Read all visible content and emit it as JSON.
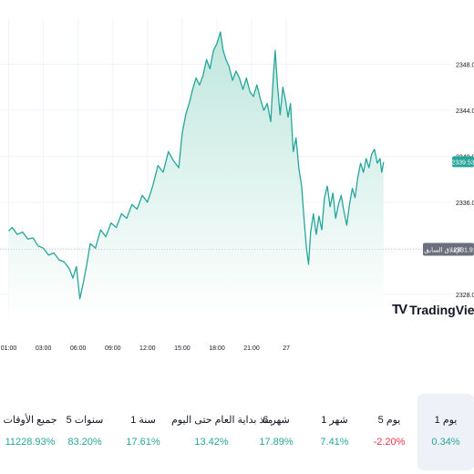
{
  "chart_data": {
    "type": "area",
    "x_ticks": [
      "01:00",
      "03:00",
      "06:00",
      "09:00",
      "12:00",
      "15:00",
      "18:00",
      "21:00",
      "27"
    ],
    "y_ticks": [
      2328.0,
      2332.0,
      2336.0,
      2340.0,
      2344.0,
      2348.0
    ],
    "ylim": [
      2326.0,
      2352.0
    ],
    "last_price": "2339.53",
    "prev_close": {
      "label": "الإغلاق السابق",
      "value": "2331.91",
      "numeric": 2331.91
    },
    "series": [
      {
        "x": 0.0,
        "y": 2333.5
      },
      {
        "x": 0.1,
        "y": 2333.8
      },
      {
        "x": 0.25,
        "y": 2333.2
      },
      {
        "x": 0.4,
        "y": 2333.4
      },
      {
        "x": 0.55,
        "y": 2332.8
      },
      {
        "x": 0.7,
        "y": 2332.9
      },
      {
        "x": 0.85,
        "y": 2332.2
      },
      {
        "x": 1.0,
        "y": 2332.0
      },
      {
        "x": 1.15,
        "y": 2331.4
      },
      {
        "x": 1.3,
        "y": 2331.6
      },
      {
        "x": 1.45,
        "y": 2331.0
      },
      {
        "x": 1.6,
        "y": 2330.8
      },
      {
        "x": 1.75,
        "y": 2330.2
      },
      {
        "x": 1.85,
        "y": 2329.4
      },
      {
        "x": 1.95,
        "y": 2330.4
      },
      {
        "x": 2.05,
        "y": 2327.6
      },
      {
        "x": 2.15,
        "y": 2329.0
      },
      {
        "x": 2.25,
        "y": 2330.6
      },
      {
        "x": 2.35,
        "y": 2332.4
      },
      {
        "x": 2.5,
        "y": 2332.0
      },
      {
        "x": 2.65,
        "y": 2333.6
      },
      {
        "x": 2.8,
        "y": 2333.0
      },
      {
        "x": 2.95,
        "y": 2334.2
      },
      {
        "x": 3.1,
        "y": 2333.8
      },
      {
        "x": 3.25,
        "y": 2335.0
      },
      {
        "x": 3.4,
        "y": 2334.6
      },
      {
        "x": 3.55,
        "y": 2335.8
      },
      {
        "x": 3.7,
        "y": 2335.4
      },
      {
        "x": 3.85,
        "y": 2336.6
      },
      {
        "x": 4.0,
        "y": 2336.0
      },
      {
        "x": 4.15,
        "y": 2337.4
      },
      {
        "x": 4.3,
        "y": 2339.2
      },
      {
        "x": 4.45,
        "y": 2338.6
      },
      {
        "x": 4.6,
        "y": 2340.4
      },
      {
        "x": 4.75,
        "y": 2339.6
      },
      {
        "x": 4.9,
        "y": 2339.0
      },
      {
        "x": 5.0,
        "y": 2342.0
      },
      {
        "x": 5.1,
        "y": 2343.6
      },
      {
        "x": 5.2,
        "y": 2344.6
      },
      {
        "x": 5.3,
        "y": 2345.8
      },
      {
        "x": 5.4,
        "y": 2346.8
      },
      {
        "x": 5.5,
        "y": 2346.2
      },
      {
        "x": 5.6,
        "y": 2347.0
      },
      {
        "x": 5.7,
        "y": 2348.4
      },
      {
        "x": 5.8,
        "y": 2347.6
      },
      {
        "x": 5.9,
        "y": 2349.2
      },
      {
        "x": 6.0,
        "y": 2349.8
      },
      {
        "x": 6.1,
        "y": 2350.8
      },
      {
        "x": 6.18,
        "y": 2349.2
      },
      {
        "x": 6.26,
        "y": 2348.4
      },
      {
        "x": 6.35,
        "y": 2347.8
      },
      {
        "x": 6.45,
        "y": 2346.6
      },
      {
        "x": 6.55,
        "y": 2347.4
      },
      {
        "x": 6.65,
        "y": 2346.8
      },
      {
        "x": 6.75,
        "y": 2345.8
      },
      {
        "x": 6.85,
        "y": 2346.8
      },
      {
        "x": 6.95,
        "y": 2345.6
      },
      {
        "x": 7.05,
        "y": 2345.2
      },
      {
        "x": 7.15,
        "y": 2346.2
      },
      {
        "x": 7.25,
        "y": 2345.0
      },
      {
        "x": 7.35,
        "y": 2344.0
      },
      {
        "x": 7.45,
        "y": 2344.6
      },
      {
        "x": 7.55,
        "y": 2343.0
      },
      {
        "x": 7.62,
        "y": 2346.8
      },
      {
        "x": 7.68,
        "y": 2349.2
      },
      {
        "x": 7.75,
        "y": 2346.0
      },
      {
        "x": 7.82,
        "y": 2343.6
      },
      {
        "x": 7.9,
        "y": 2346.0
      },
      {
        "x": 7.98,
        "y": 2344.8
      },
      {
        "x": 8.05,
        "y": 2343.4
      },
      {
        "x": 8.12,
        "y": 2344.6
      },
      {
        "x": 8.2,
        "y": 2340.4
      },
      {
        "x": 8.28,
        "y": 2341.6
      },
      {
        "x": 8.36,
        "y": 2339.0
      },
      {
        "x": 8.44,
        "y": 2337.4
      },
      {
        "x": 8.52,
        "y": 2334.2
      },
      {
        "x": 8.58,
        "y": 2332.0
      },
      {
        "x": 8.64,
        "y": 2330.6
      },
      {
        "x": 8.7,
        "y": 2333.4
      },
      {
        "x": 8.78,
        "y": 2335.0
      },
      {
        "x": 8.86,
        "y": 2333.2
      },
      {
        "x": 8.94,
        "y": 2334.8
      },
      {
        "x": 9.02,
        "y": 2333.6
      },
      {
        "x": 9.1,
        "y": 2336.4
      },
      {
        "x": 9.18,
        "y": 2337.4
      },
      {
        "x": 9.26,
        "y": 2335.6
      },
      {
        "x": 9.34,
        "y": 2336.8
      },
      {
        "x": 9.42,
        "y": 2334.6
      },
      {
        "x": 9.5,
        "y": 2335.8
      },
      {
        "x": 9.58,
        "y": 2336.6
      },
      {
        "x": 9.66,
        "y": 2335.2
      },
      {
        "x": 9.74,
        "y": 2334.0
      },
      {
        "x": 9.82,
        "y": 2335.8
      },
      {
        "x": 9.9,
        "y": 2337.2
      },
      {
        "x": 9.98,
        "y": 2336.4
      },
      {
        "x": 10.06,
        "y": 2338.2
      },
      {
        "x": 10.14,
        "y": 2339.4
      },
      {
        "x": 10.22,
        "y": 2338.6
      },
      {
        "x": 10.3,
        "y": 2339.8
      },
      {
        "x": 10.38,
        "y": 2339.0
      },
      {
        "x": 10.46,
        "y": 2340.2
      },
      {
        "x": 10.54,
        "y": 2340.6
      },
      {
        "x": 10.62,
        "y": 2339.4
      },
      {
        "x": 10.7,
        "y": 2339.8
      },
      {
        "x": 10.75,
        "y": 2338.6
      },
      {
        "x": 10.8,
        "y": 2339.5
      }
    ],
    "x_domain": [
      -0.25,
      12.75
    ]
  },
  "colors": {
    "line": "#26a69a",
    "fill_top": "#bfe7dd",
    "fill_bottom": "#ffffff",
    "grid": "#f0f3fa",
    "axis_text": "#131722",
    "price_badge": "#26a69a",
    "prev_badge": "#6b6f7d",
    "positive": "#26a69a",
    "negative": "#f23645",
    "active_tab": "#eef1f8"
  },
  "branding": {
    "logo_mark": "TV",
    "logo_text": "TradingView"
  },
  "periods": [
    {
      "label": "1 يوم",
      "value": "0.34%",
      "trend": "positive",
      "active": true
    },
    {
      "label": "5 يوم",
      "value": "-2.20%",
      "trend": "negative",
      "active": false
    },
    {
      "label": "1 شهر",
      "value": "7.41%",
      "trend": "positive",
      "active": false
    },
    {
      "label": "6 شهر",
      "value": "17.89%",
      "trend": "positive",
      "active": false
    },
    {
      "label": "منذ بداية العام حتى اليوم",
      "value": "13.42%",
      "trend": "positive",
      "active": false
    },
    {
      "label": "1 سنة",
      "value": "17.61%",
      "trend": "positive",
      "active": false
    },
    {
      "label": "5 سنوات",
      "value": "83.20%",
      "trend": "positive",
      "active": false
    },
    {
      "label": "جميع الأوقات",
      "value": "11228.93%",
      "trend": "positive",
      "active": false
    }
  ]
}
